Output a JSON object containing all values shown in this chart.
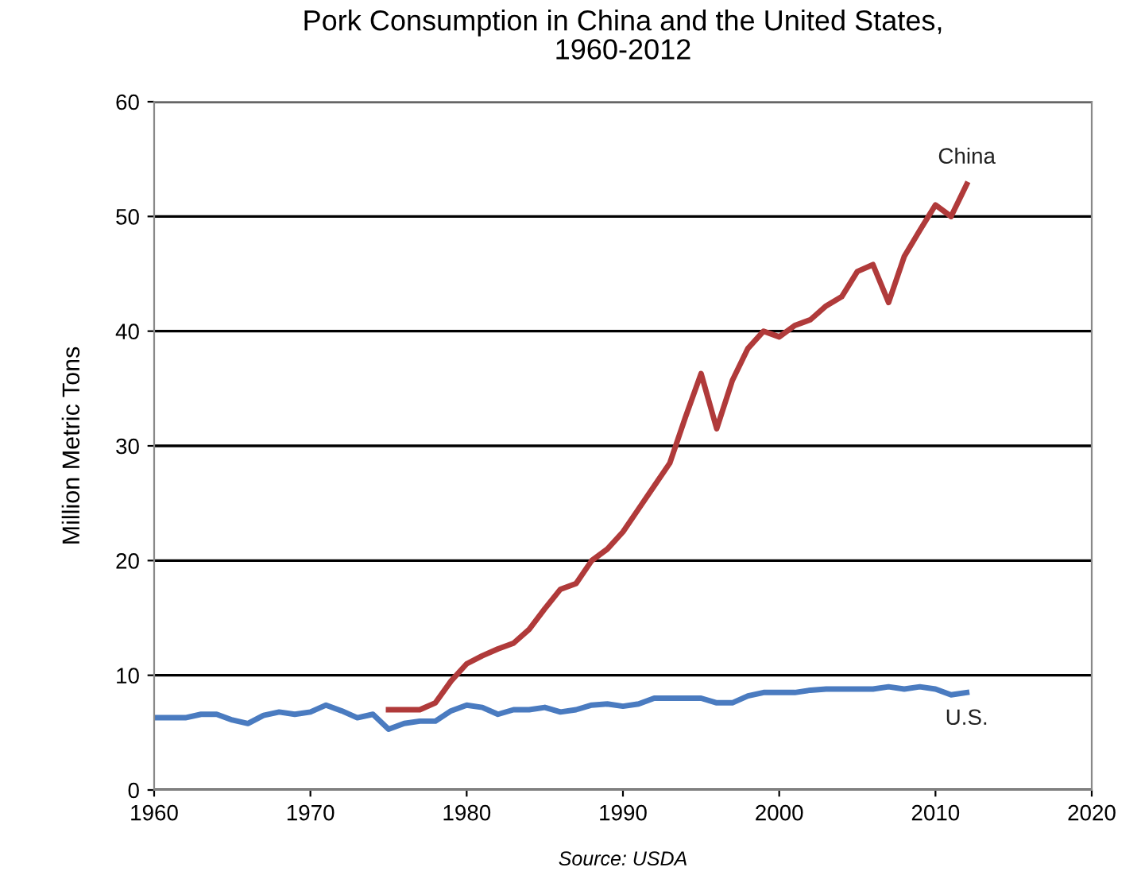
{
  "chart_data": {
    "type": "line",
    "title": "Pork Consumption in China and the United States,\n1960-2012",
    "ylabel": "Million Metric Tons",
    "annotations": [
      "Source: USDA"
    ],
    "xlim": [
      1960,
      2020
    ],
    "xticks": [
      1960,
      1970,
      1980,
      1990,
      2000,
      2010,
      2020
    ],
    "ylim": [
      0,
      60
    ],
    "yticks": [
      0,
      10,
      20,
      30,
      40,
      50,
      60
    ],
    "grid": "y",
    "legend": false,
    "series": [
      {
        "name": "China",
        "color": "#b03a3a",
        "x": [
          1975,
          1976,
          1977,
          1978,
          1979,
          1980,
          1981,
          1982,
          1983,
          1984,
          1985,
          1986,
          1987,
          1988,
          1989,
          1990,
          1991,
          1992,
          1993,
          1994,
          1995,
          1996,
          1997,
          1998,
          1999,
          2000,
          2001,
          2002,
          2003,
          2004,
          2005,
          2006,
          2007,
          2008,
          2009,
          2010,
          2011,
          2012
        ],
        "values": [
          7.0,
          7.0,
          7.0,
          7.6,
          9.5,
          11.0,
          11.7,
          12.3,
          12.8,
          14.0,
          15.8,
          17.5,
          18.0,
          20.0,
          21.0,
          22.5,
          24.5,
          26.5,
          28.5,
          32.5,
          36.3,
          31.5,
          35.7,
          38.5,
          40.0,
          39.5,
          40.5,
          41.0,
          42.2,
          43.0,
          45.2,
          45.8,
          42.5,
          46.5,
          48.8,
          51.0,
          50.0,
          52.8
        ]
      },
      {
        "name": "U.S.",
        "color": "#4a7bc0",
        "x": [
          1960,
          1961,
          1962,
          1963,
          1964,
          1965,
          1966,
          1967,
          1968,
          1969,
          1970,
          1971,
          1972,
          1973,
          1974,
          1975,
          1976,
          1977,
          1978,
          1979,
          1980,
          1981,
          1982,
          1983,
          1984,
          1985,
          1986,
          1987,
          1988,
          1989,
          1990,
          1991,
          1992,
          1993,
          1994,
          1995,
          1996,
          1997,
          1998,
          1999,
          2000,
          2001,
          2002,
          2003,
          2004,
          2005,
          2006,
          2007,
          2008,
          2009,
          2010,
          2011,
          2012
        ],
        "values": [
          6.3,
          6.3,
          6.3,
          6.6,
          6.6,
          6.1,
          5.8,
          6.5,
          6.8,
          6.6,
          6.8,
          7.4,
          6.9,
          6.3,
          6.6,
          5.3,
          5.8,
          6.0,
          6.0,
          6.9,
          7.4,
          7.2,
          6.6,
          7.0,
          7.0,
          7.2,
          6.8,
          7.0,
          7.4,
          7.5,
          7.3,
          7.5,
          8.0,
          8.0,
          8.0,
          8.0,
          7.6,
          7.6,
          8.2,
          8.5,
          8.5,
          8.5,
          8.7,
          8.8,
          8.8,
          8.8,
          8.8,
          9.0,
          8.8,
          9.0,
          8.8,
          8.3,
          8.5
        ]
      }
    ]
  }
}
